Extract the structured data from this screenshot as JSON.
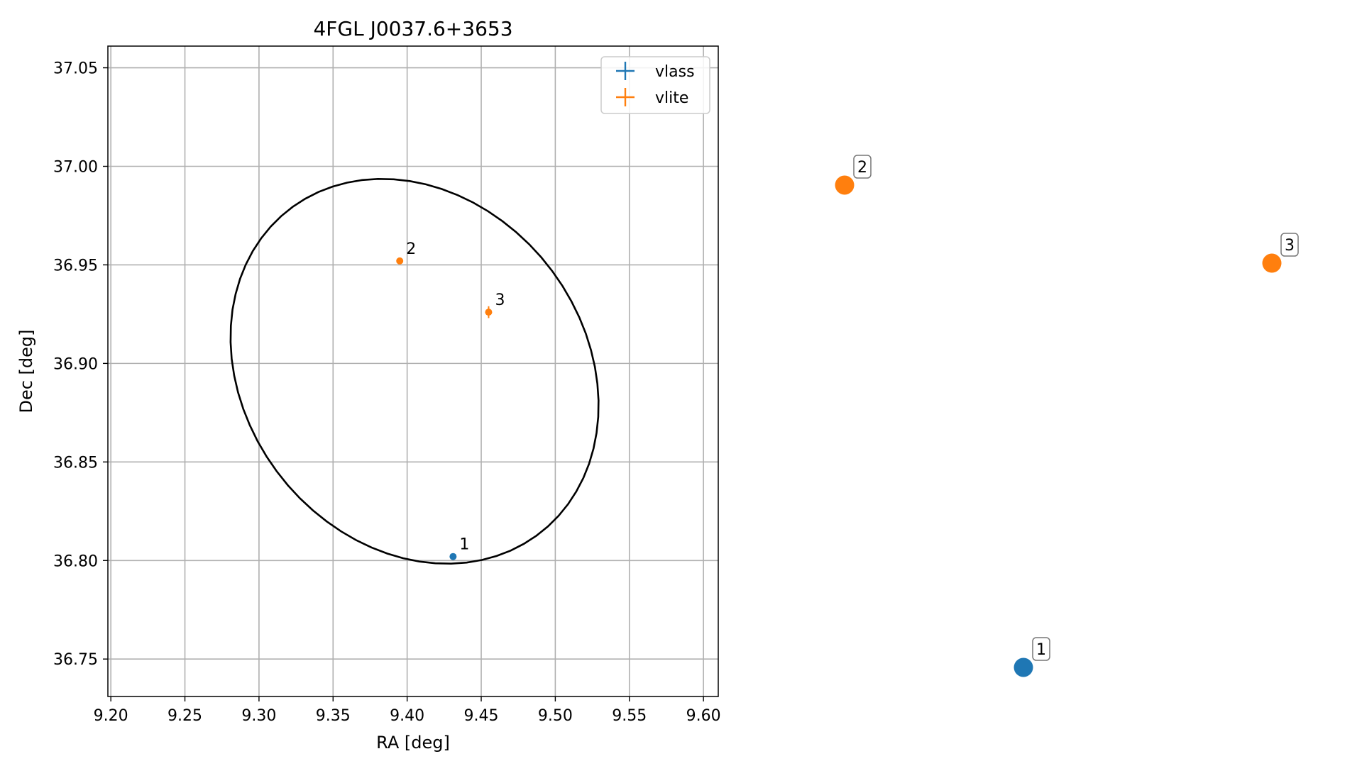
{
  "chart_data": {
    "type": "scatter",
    "title": "4FGL J0037.6+3653",
    "xlabel": "RA [deg]",
    "ylabel": "Dec [deg]",
    "xlim": [
      9.198,
      9.61
    ],
    "ylim": [
      36.731,
      37.061
    ],
    "xticks": [
      9.2,
      9.25,
      9.3,
      9.35,
      9.4,
      9.45,
      9.5,
      9.55,
      9.6
    ],
    "xtick_labels": [
      "9.20",
      "9.25",
      "9.30",
      "9.35",
      "9.40",
      "9.45",
      "9.50",
      "9.55",
      "9.60"
    ],
    "yticks": [
      36.75,
      36.8,
      36.85,
      36.9,
      36.95,
      37.0,
      37.05
    ],
    "ytick_labels": [
      "36.75",
      "36.80",
      "36.85",
      "36.90",
      "36.95",
      "37.00",
      "37.05"
    ],
    "grid": true,
    "legend_position": "top-right",
    "ellipse": {
      "center": [
        9.405,
        36.896
      ],
      "semi_axis_ra": 0.127,
      "semi_axis_dec": 0.094,
      "rotation_deg": -18,
      "color": "#000000"
    },
    "series": [
      {
        "name": "vlass",
        "color": "#1f77b4",
        "points": [
          {
            "label": "1",
            "ra": 9.431,
            "dec": 36.802,
            "dec_err": 0.0
          }
        ]
      },
      {
        "name": "vlite",
        "color": "#ff7f0e",
        "points": [
          {
            "label": "2",
            "ra": 9.395,
            "dec": 36.952,
            "dec_err": 0.0
          },
          {
            "label": "3",
            "ra": 9.455,
            "dec": 36.926,
            "dec_err": 0.003
          }
        ]
      }
    ],
    "side_markers": [
      {
        "label": "2",
        "series": "vlite",
        "color": "#ff7f0e"
      },
      {
        "label": "3",
        "series": "vlite",
        "color": "#ff7f0e"
      },
      {
        "label": "1",
        "series": "vlass",
        "color": "#1f77b4"
      }
    ]
  }
}
